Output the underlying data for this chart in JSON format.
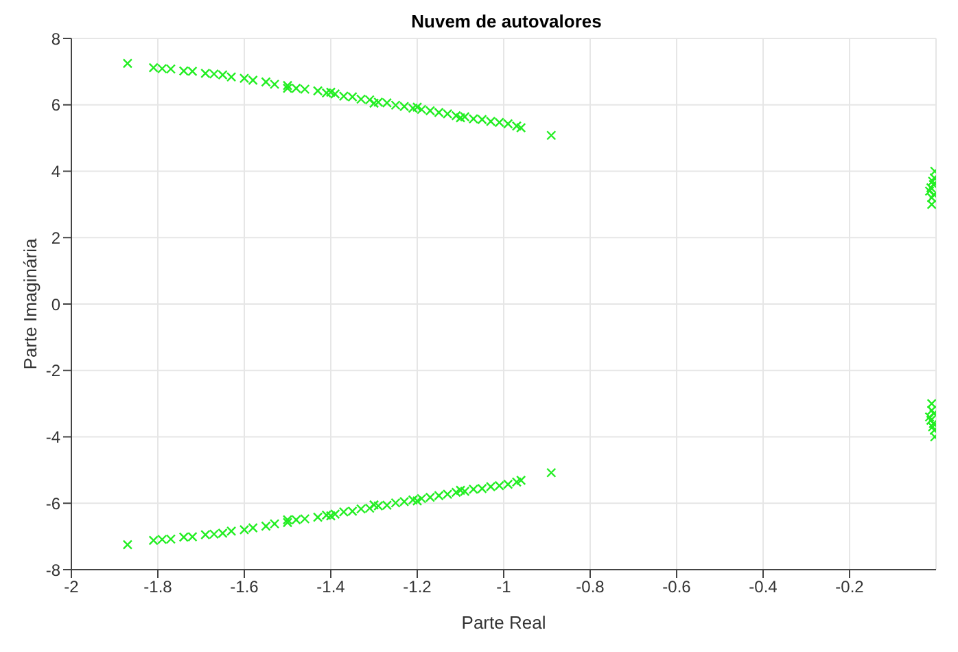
{
  "chart_data": {
    "type": "scatter",
    "title": "Nuvem de autovalores",
    "xlabel": "Parte Real",
    "ylabel": "Parte Imaginária",
    "xlim": [
      -2,
      0
    ],
    "xticks": [
      -2,
      -1.8,
      -1.6,
      -1.4,
      -1.2,
      -1,
      -0.8,
      -0.6,
      -0.4,
      -0.2
    ],
    "ylim": [
      -8,
      8
    ],
    "yticks": [
      -8,
      -6,
      -4,
      -2,
      0,
      2,
      4,
      6,
      8
    ],
    "grid": true,
    "marker": "cross",
    "series": [
      {
        "color": "#22ee22",
        "x": [
          -1.87,
          -1.81,
          -1.79,
          -1.77,
          -1.74,
          -1.72,
          -1.69,
          -1.67,
          -1.65,
          -1.63,
          -1.6,
          -1.58,
          -1.55,
          -1.53,
          -1.5,
          -1.48,
          -1.46,
          -1.43,
          -1.41,
          -1.39,
          -1.37,
          -1.35,
          -1.33,
          -1.31,
          -1.29,
          -1.27,
          -1.25,
          -1.23,
          -1.21,
          -1.19,
          -1.17,
          -1.15,
          -1.13,
          -1.11,
          -1.09,
          -1.07,
          -1.05,
          -1.03,
          -1.01,
          -0.99,
          -0.97,
          -0.96,
          -0.89,
          -1.5,
          -1.4,
          -1.3,
          -1.2,
          -1.1,
          -0.01,
          -0.005,
          -0.012,
          -0.008,
          -0.003,
          -0.015,
          -0.006,
          -0.01,
          -0.004,
          -1.87,
          -1.81,
          -1.79,
          -1.77,
          -1.74,
          -1.72,
          -1.69,
          -1.67,
          -1.65,
          -1.63,
          -1.6,
          -1.58,
          -1.55,
          -1.53,
          -1.5,
          -1.48,
          -1.46,
          -1.43,
          -1.41,
          -1.39,
          -1.37,
          -1.35,
          -1.33,
          -1.31,
          -1.29,
          -1.27,
          -1.25,
          -1.23,
          -1.21,
          -1.19,
          -1.17,
          -1.15,
          -1.13,
          -1.11,
          -1.09,
          -1.07,
          -1.05,
          -1.03,
          -1.01,
          -0.99,
          -0.97,
          -0.96,
          -0.89,
          -1.5,
          -1.4,
          -1.3,
          -1.2,
          -1.1,
          -0.01,
          -0.005,
          -0.012,
          -0.008,
          -0.003,
          -0.015,
          -0.006,
          -0.01,
          -0.004
        ],
        "values": [
          7.25,
          7.12,
          7.09,
          7.08,
          7.02,
          7.01,
          6.95,
          6.93,
          6.9,
          6.84,
          6.8,
          6.74,
          6.69,
          6.62,
          6.58,
          6.5,
          6.47,
          6.42,
          6.36,
          6.33,
          6.26,
          6.24,
          6.17,
          6.15,
          6.08,
          6.06,
          5.99,
          5.95,
          5.9,
          5.86,
          5.82,
          5.77,
          5.73,
          5.67,
          5.64,
          5.58,
          5.56,
          5.5,
          5.47,
          5.43,
          5.36,
          5.31,
          5.08,
          6.5,
          6.38,
          6.05,
          5.93,
          5.61,
          3.0,
          3.3,
          3.5,
          3.7,
          4.0,
          3.4,
          3.6,
          3.2,
          3.8,
          -7.25,
          -7.12,
          -7.09,
          -7.08,
          -7.02,
          -7.01,
          -6.95,
          -6.93,
          -6.9,
          -6.84,
          -6.8,
          -6.74,
          -6.69,
          -6.62,
          -6.58,
          -6.5,
          -6.47,
          -6.42,
          -6.36,
          -6.33,
          -6.26,
          -6.24,
          -6.17,
          -6.15,
          -6.08,
          -6.06,
          -5.99,
          -5.95,
          -5.9,
          -5.86,
          -5.82,
          -5.77,
          -5.73,
          -5.67,
          -5.64,
          -5.58,
          -5.56,
          -5.5,
          -5.47,
          -5.43,
          -5.36,
          -5.31,
          -5.08,
          -6.5,
          -6.38,
          -6.05,
          -5.93,
          -5.61,
          -3.0,
          -3.3,
          -3.5,
          -3.7,
          -4.0,
          -3.4,
          -3.6,
          -3.2,
          -3.8
        ]
      }
    ]
  }
}
